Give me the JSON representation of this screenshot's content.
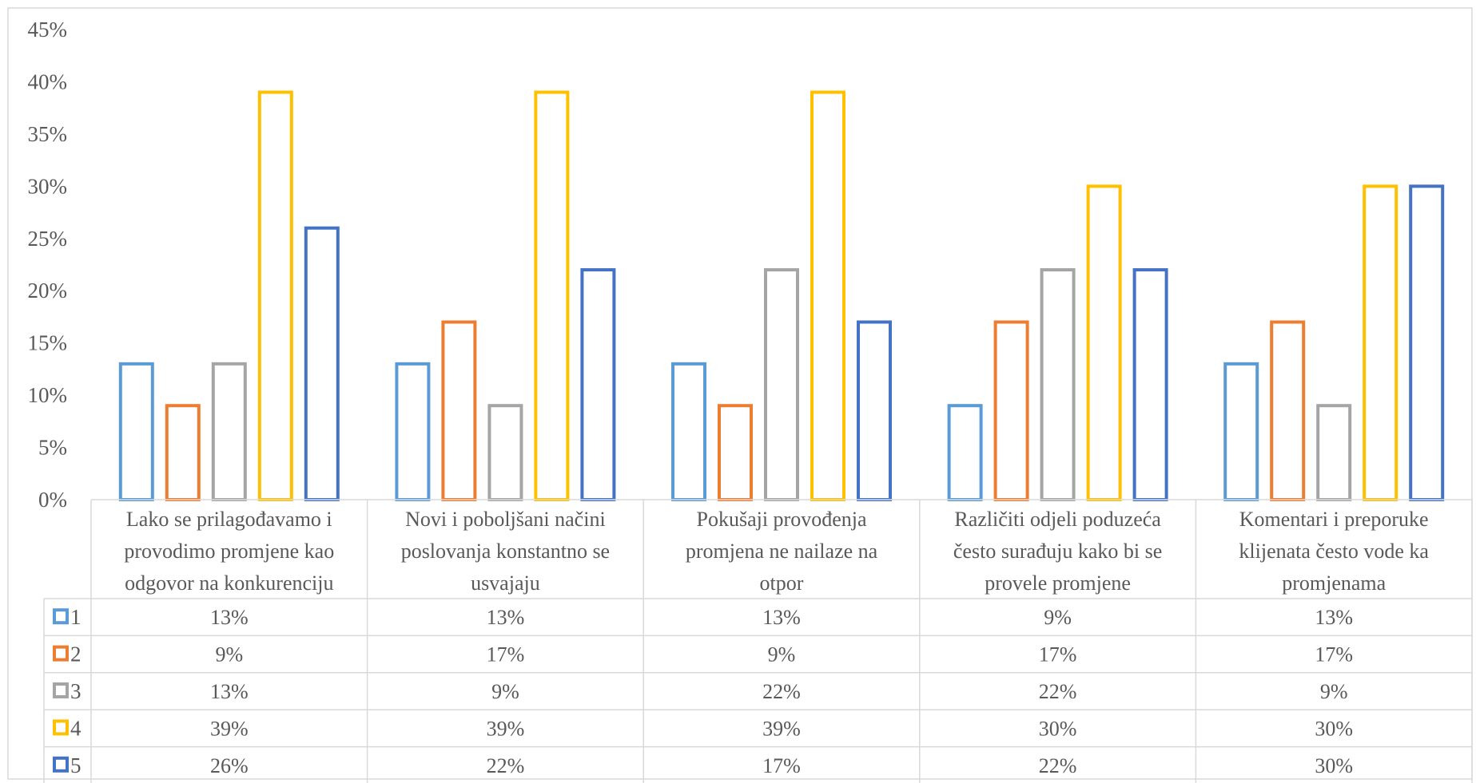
{
  "chart_data": {
    "type": "bar",
    "style": "outlined-bars-with-data-table",
    "categories": [
      [
        "Lako se prilagođavamo i",
        "provodimo promjene kao",
        "odgovor na konkurenciju"
      ],
      [
        "Novi i poboljšani načini",
        "poslovanja konstantno se",
        "usvajaju"
      ],
      [
        "Pokušaji provođenja",
        "promjena ne nailaze na",
        "otpor"
      ],
      [
        "Različiti odjeli poduzeća",
        "često surađuju kako bi se",
        "provele promjene"
      ],
      [
        "Komentari i preporuke",
        "klijenata često vode ka",
        "promjenama"
      ]
    ],
    "series": [
      {
        "name": "1",
        "color": "#5b9bd5",
        "values": [
          13,
          13,
          13,
          9,
          13
        ],
        "labels": [
          "13%",
          "13%",
          "13%",
          "9%",
          "13%"
        ]
      },
      {
        "name": "2",
        "color": "#ed7d31",
        "values": [
          9,
          17,
          9,
          17,
          17
        ],
        "labels": [
          "9%",
          "17%",
          "9%",
          "17%",
          "17%"
        ]
      },
      {
        "name": "3",
        "color": "#a5a5a5",
        "values": [
          13,
          9,
          22,
          22,
          9
        ],
        "labels": [
          "13%",
          "9%",
          "22%",
          "22%",
          "9%"
        ]
      },
      {
        "name": "4",
        "color": "#ffc000",
        "values": [
          39,
          39,
          39,
          30,
          30
        ],
        "labels": [
          "39%",
          "39%",
          "39%",
          "30%",
          "30%"
        ]
      },
      {
        "name": "5",
        "color": "#4472c4",
        "values": [
          26,
          22,
          17,
          22,
          30
        ],
        "labels": [
          "26%",
          "22%",
          "17%",
          "22%",
          "30%"
        ]
      }
    ],
    "ylim": [
      0,
      45
    ],
    "yticks": [
      "0%",
      "5%",
      "10%",
      "15%",
      "20%",
      "25%",
      "30%",
      "35%",
      "40%",
      "45%"
    ],
    "grid": false,
    "legend": "data-table-left"
  }
}
